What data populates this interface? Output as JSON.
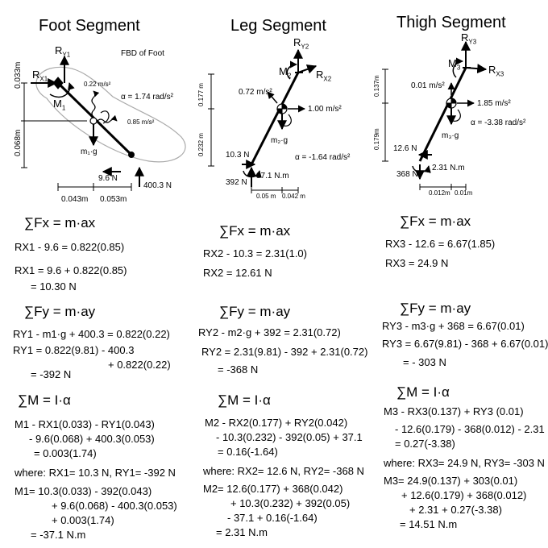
{
  "foot": {
    "title": "Foot Segment",
    "fbd": "FBD of Foot",
    "d": {
      "a": "0.033m",
      "b": "0.068m",
      "c": "0.043m",
      "e": "0.053m"
    },
    "l": {
      "rx": "R",
      "rx_sub": "X1",
      "ry": "R",
      "ry_sub": "Y1",
      "m": "M",
      "m_sub": "1",
      "acc1": "0.22 m/s²",
      "alpha": "α = 1.74 rad/s²",
      "acc2": "0.85 m/s²",
      "w": "m₁·g",
      "f1": "9.6 N",
      "f2": "400.3 N"
    },
    "sfx": "∑Fx = m·ax",
    "fx1": "RX1 - 9.6 = 0.822(0.85)",
    "fx2": "RX1 = 9.6 + 0.822(0.85)",
    "fx3": "= 10.30 N",
    "sfy": "∑Fy = m·ay",
    "fy1": "RY1 - m1·g + 400.3 = 0.822(0.22)",
    "fy2": "RY1 = 0.822(9.81) - 400.3",
    "fy3": "+ 0.822(0.22)",
    "fy4": "= -392 N",
    "sm": "∑M = I·α",
    "m1": "M1 - RX1(0.033) - RY1(0.043)",
    "m2": "- 9.6(0.068) + 400.3(0.053)",
    "m3": "= 0.003(1.74)",
    "where": "where: RX1= 10.3 N,  RY1= -392 N",
    "m4": "M1= 10.3(0.033) - 392(0.043)",
    "m5": "+ 9.6(0.068) - 400.3(0.053)",
    "m6": "+ 0.003(1.74)",
    "m7": "= -37.1 N.m"
  },
  "leg": {
    "title": "Leg Segment",
    "d": {
      "a": "0.177 m",
      "b": "0.232 m",
      "c": "0.05 m",
      "e": "0.042 m"
    },
    "l": {
      "ry": "R",
      "ry_sub": "Y2",
      "rx": "R",
      "rx_sub": "X2",
      "m": "M",
      "m_sub": "2",
      "acc1": "0.72 m/s²",
      "acc2": "1.00 m/s²",
      "w": "m₂·g",
      "alpha": "α = -1.64 rad/s²",
      "f1": "10.3 N",
      "f2": "392 N",
      "mom": "37.1 N.m"
    },
    "sfx": "∑Fx = m·ax",
    "fx1": "RX2 - 10.3 = 2.31(1.0)",
    "fx2": "RX2 = 12.61 N",
    "sfy": "∑Fy = m·ay",
    "fy1": "RY2 - m2·g + 392 = 2.31(0.72)",
    "fy2": "RY2 = 2.31(9.81) - 392 + 2.31(0.72)",
    "fy3": "= -368 N",
    "sm": "∑M = I·α",
    "m1": "M2 - RX2(0.177) + RY2(0.042)",
    "m2": "- 10.3(0.232) - 392(0.05) + 37.1",
    "m3": "= 0.16(-1.64)",
    "where": "where: RX2= 12.6 N,  RY2= -368 N",
    "m4": "M2= 12.6(0.177) + 368(0.042)",
    "m5": "+ 10.3(0.232) + 392(0.05)",
    "m6": "- 37.1 + 0.16(-1.64)",
    "m7": "= 2.31 N.m"
  },
  "thigh": {
    "title": "Thigh Segment",
    "d": {
      "a": "0.137m",
      "b": "0.179m",
      "c": "0.012m",
      "e": "0.01m"
    },
    "l": {
      "ry": "R",
      "ry_sub": "Y3",
      "rx": "R",
      "rx_sub": "X3",
      "m": "M",
      "m_sub": "3",
      "acc1": "0.01 m/s²",
      "acc2": "1.85 m/s²",
      "w": "m₃·g",
      "alpha": "α = -3.38 rad/s²",
      "f1": "12.6 N",
      "f2": "368 N",
      "mom": "2.31 N.m"
    },
    "sfx": "∑Fx = m·ax",
    "fx1": "RX3 - 12.6 = 6.67(1.85)",
    "fx2": "RX3 = 24.9 N",
    "sfy": "∑Fy = m·ay",
    "fy1": "RY3 - m3·g + 368 = 6.67(0.01)",
    "fy2": "RY3 = 6.67(9.81) - 368 + 6.67(0.01)",
    "fy3": "= - 303 N",
    "sm": "∑M = I·α",
    "m1": "M3 - RX3(0.137) + RY3 (0.01)",
    "m2": "- 12.6(0.179) - 368(0.012) - 2.31",
    "m3": "= 0.27(-3.38)",
    "where": "where: RX3= 24.9 N,  RY3= -303 N",
    "m4": "M3= 24.9(0.137) + 303(0.01)",
    "m5": "+ 12.6(0.179) + 368(0.012)",
    "m6": "+ 2.31 + 0.27(-3.38)",
    "m7": "= 14.51 N.m"
  }
}
